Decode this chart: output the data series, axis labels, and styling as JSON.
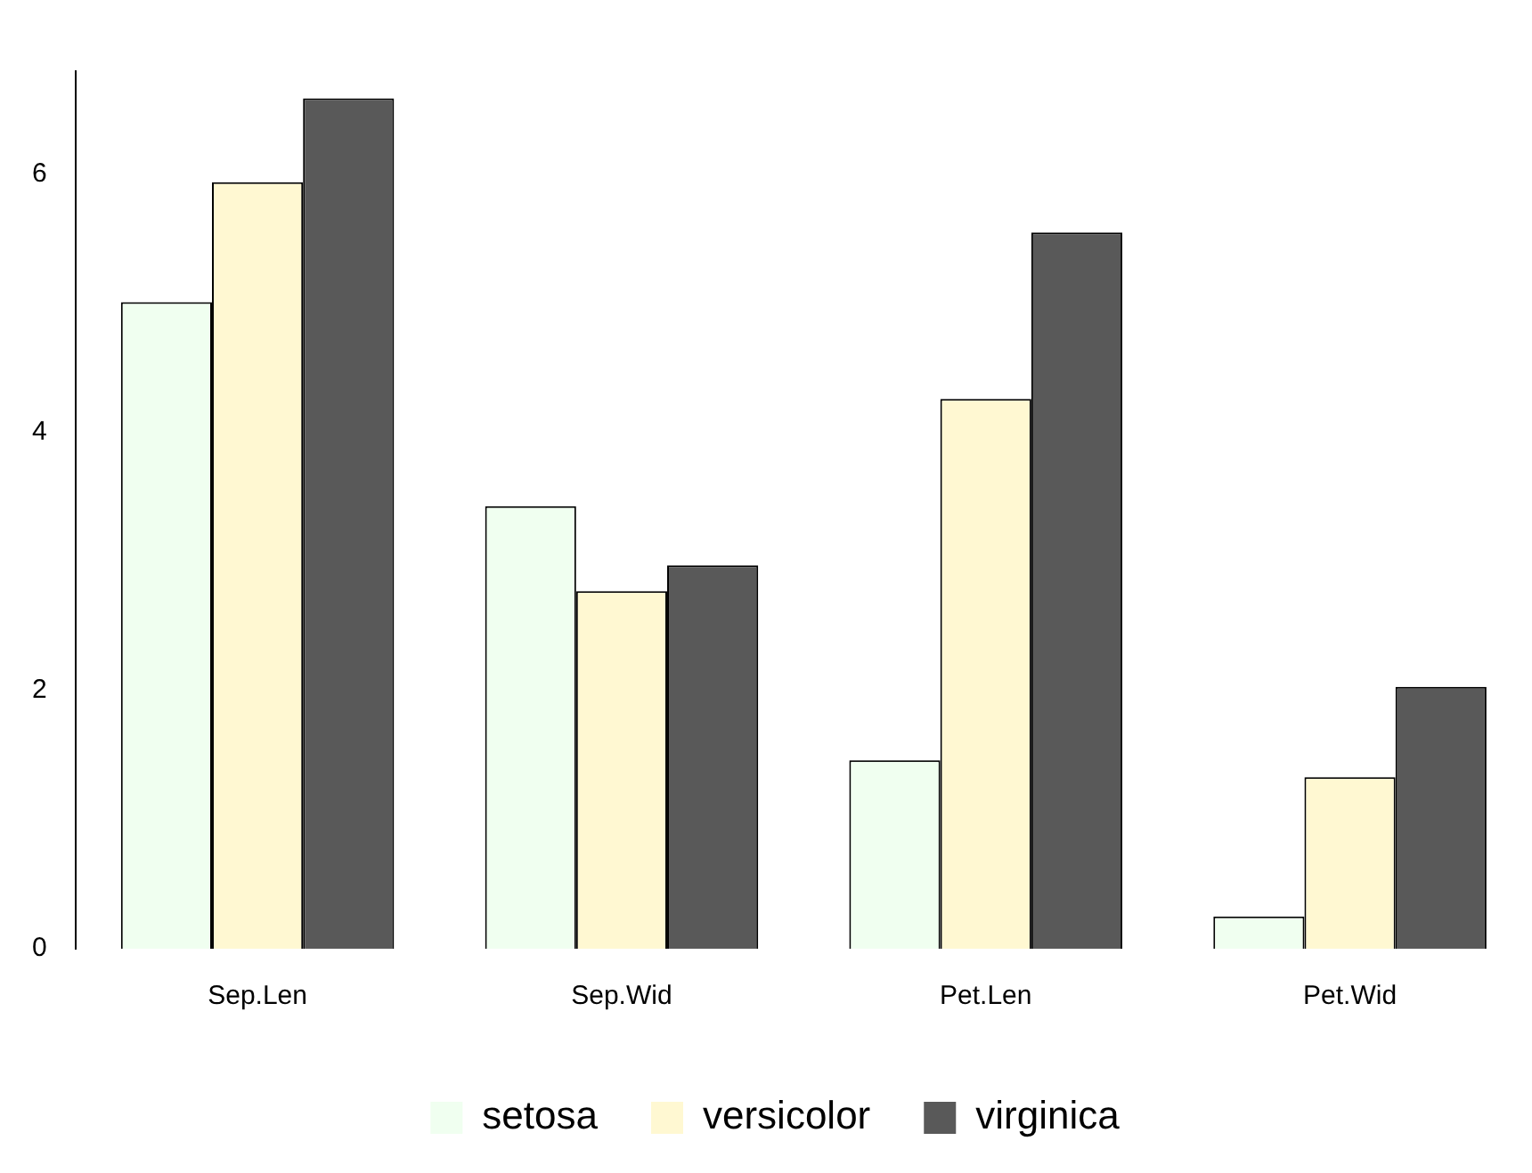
{
  "chart_data": {
    "type": "bar",
    "categories": [
      "Sep.Len",
      "Sep.Wid",
      "Pet.Len",
      "Pet.Wid"
    ],
    "series": [
      {
        "name": "setosa",
        "color": "#f0fff0",
        "values": [
          5.01,
          3.43,
          1.46,
          0.25
        ]
      },
      {
        "name": "versicolor",
        "color": "#fff8d2",
        "values": [
          5.94,
          2.77,
          4.26,
          1.33
        ]
      },
      {
        "name": "virginica",
        "color": "#595959",
        "values": [
          6.59,
          2.97,
          5.55,
          2.03
        ]
      }
    ],
    "ylim": [
      0,
      6.8
    ],
    "yticks": [
      0,
      2,
      4,
      6
    ],
    "grid": false,
    "legend": "bottom"
  }
}
